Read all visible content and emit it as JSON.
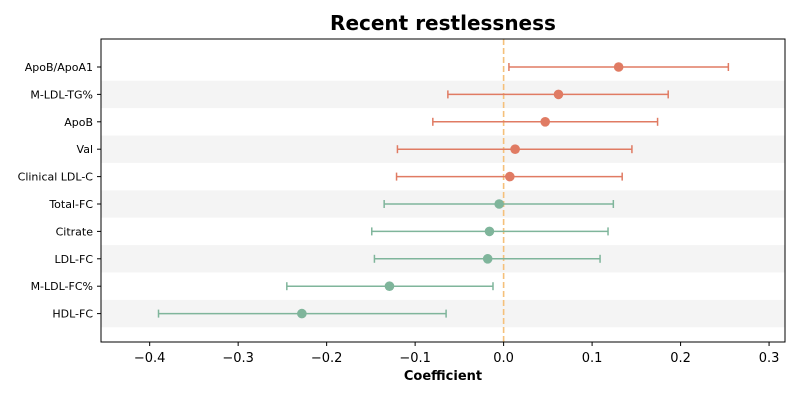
{
  "chart_data": {
    "type": "forest",
    "title": "Recent restlessness",
    "xlabel": "Coefficient",
    "xlim": [
      -0.455,
      0.318
    ],
    "xticks": [
      -0.4,
      -0.3,
      -0.2,
      -0.1,
      0.0,
      0.1,
      0.2,
      0.3
    ],
    "xtick_labels": [
      "−0.4",
      "−0.3",
      "−0.2",
      "−0.1",
      "0.0",
      "0.1",
      "0.2",
      "0.3"
    ],
    "reference_line": 0.0,
    "colors": {
      "positive": "#e07b63",
      "negative": "#7fb59b",
      "reference": "#f5c07a",
      "band": "#f4f4f4"
    },
    "categories": [
      "ApoB/ApoA1",
      "M-LDL-TG%",
      "ApoB",
      "Val",
      "Clinical LDL-C",
      "Total-FC",
      "Citrate",
      "LDL-FC",
      "M-LDL-FC%",
      "HDL-FC"
    ],
    "estimates": [
      0.13,
      0.062,
      0.047,
      0.013,
      0.007,
      -0.005,
      -0.016,
      -0.018,
      -0.129,
      -0.228
    ],
    "ci_low": [
      0.006,
      -0.063,
      -0.08,
      -0.12,
      -0.121,
      -0.135,
      -0.149,
      -0.146,
      -0.245,
      -0.39
    ],
    "ci_high": [
      0.254,
      0.186,
      0.174,
      0.145,
      0.134,
      0.124,
      0.118,
      0.109,
      -0.012,
      -0.065
    ]
  }
}
